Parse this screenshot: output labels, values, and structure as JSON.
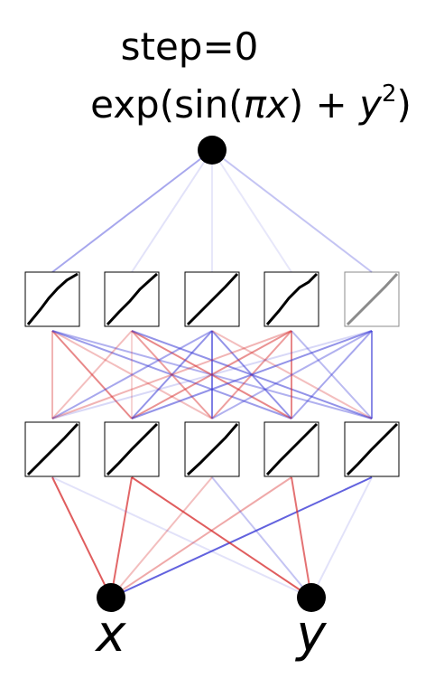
{
  "title": {
    "step_label": "step=0",
    "formula_prefix": "exp(sin(",
    "formula_pi": "π",
    "formula_x": "x",
    "formula_mid": ") + ",
    "formula_y": "y",
    "formula_exp": "2",
    "formula_suffix": ")"
  },
  "inputs": [
    {
      "label": "x"
    },
    {
      "label": "y"
    }
  ],
  "hidden_layer_1": [
    {
      "name": "h1-node-1"
    },
    {
      "name": "h1-node-2"
    },
    {
      "name": "h1-node-3"
    },
    {
      "name": "h1-node-4"
    },
    {
      "name": "h1-node-5"
    }
  ],
  "hidden_layer_2": [
    {
      "name": "h2-node-1"
    },
    {
      "name": "h2-node-2"
    },
    {
      "name": "h2-node-3"
    },
    {
      "name": "h2-node-4"
    },
    {
      "name": "h2-node-5"
    }
  ],
  "colors": {
    "positive": "#d62728",
    "negative": "#3b3bd6",
    "node": "#000000"
  }
}
